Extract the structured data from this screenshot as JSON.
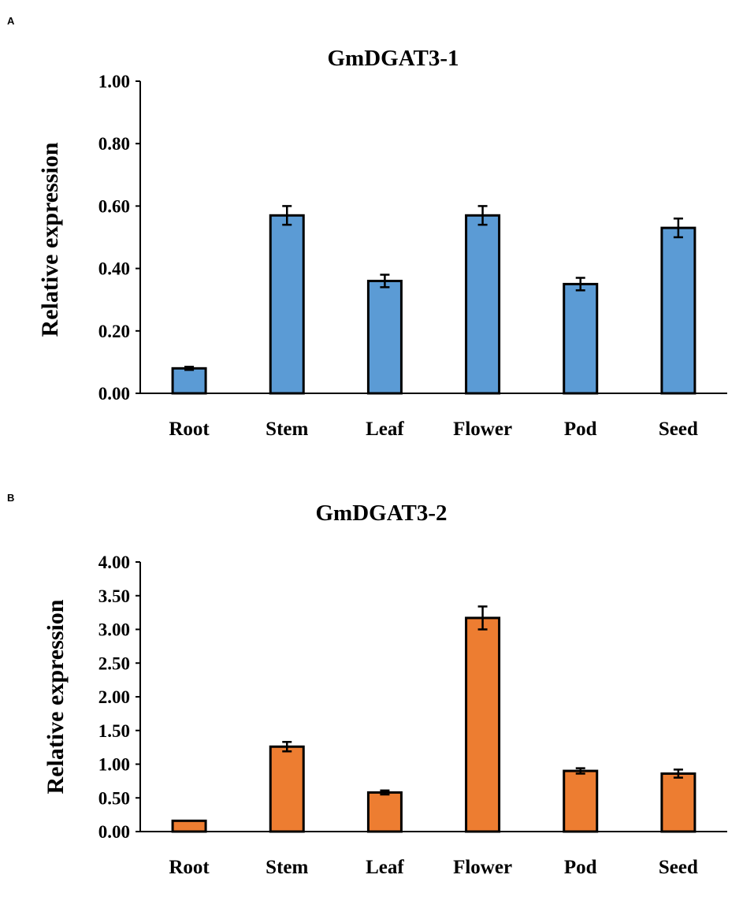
{
  "chart_data": [
    {
      "type": "bar",
      "panel": "A",
      "title": "GmDGAT3-1",
      "xlabel": "",
      "ylabel": "Relative expression",
      "categories": [
        "Root",
        "Stem",
        "Leaf",
        "Flower",
        "Pod",
        "Seed"
      ],
      "values": [
        0.08,
        0.57,
        0.36,
        0.57,
        0.35,
        0.53
      ],
      "errors": [
        0.005,
        0.03,
        0.02,
        0.03,
        0.02,
        0.03
      ],
      "ylim": [
        0,
        1.0
      ],
      "yticks": [
        "0.00",
        "0.20",
        "0.40",
        "0.60",
        "0.80",
        "1.00"
      ],
      "ytick_values": [
        0,
        0.2,
        0.4,
        0.6,
        0.8,
        1.0
      ],
      "bar_color": "#5b9bd5",
      "grid": false
    },
    {
      "type": "bar",
      "panel": "B",
      "title": "GmDGAT3-2",
      "xlabel": "",
      "ylabel": "Relative expression",
      "categories": [
        "Root",
        "Stem",
        "Leaf",
        "Flower",
        "Pod",
        "Seed"
      ],
      "values": [
        0.16,
        1.26,
        0.58,
        3.17,
        0.9,
        0.86
      ],
      "errors": [
        0.0,
        0.07,
        0.03,
        0.17,
        0.04,
        0.06
      ],
      "ylim": [
        0,
        4.0
      ],
      "yticks": [
        "0.00",
        "0.50",
        "1.00",
        "1.50",
        "2.00",
        "2.50",
        "3.00",
        "3.50",
        "4.00"
      ],
      "ytick_values": [
        0,
        0.5,
        1.0,
        1.5,
        2.0,
        2.5,
        3.0,
        3.5,
        4.0
      ],
      "bar_color": "#ed7d31",
      "grid": false
    }
  ]
}
